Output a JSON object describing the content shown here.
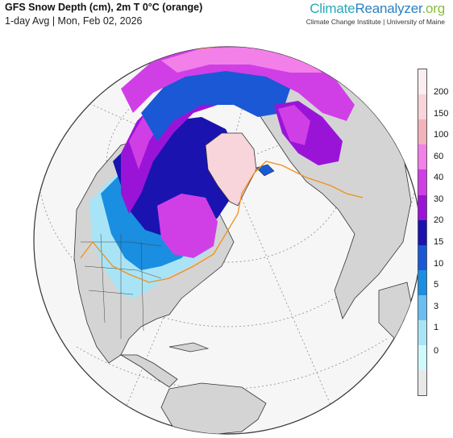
{
  "header": {
    "title": "GFS Snow Depth (cm), 2m T 0°C (orange)",
    "subtitle": "1-day Avg | Mon, Feb 02, 2026"
  },
  "brand": {
    "logo_part1": "Climate",
    "logo_part2": "Reanalyzer",
    "logo_part3": ".org",
    "tagline": "Climate Change Institute | University of Maine"
  },
  "legend": {
    "ticks": [
      {
        "label": "200",
        "color": "#fbeef0"
      },
      {
        "label": "150",
        "color": "#f7d5da"
      },
      {
        "label": "100",
        "color": "#f3b3ba"
      },
      {
        "label": "60",
        "color": "#f37fe9"
      },
      {
        "label": "40",
        "color": "#d03fe6"
      },
      {
        "label": "30",
        "color": "#9a14d8"
      },
      {
        "label": "20",
        "color": "#1a13b0"
      },
      {
        "label": "15",
        "color": "#1a58d6"
      },
      {
        "label": "10",
        "color": "#1a8ee0"
      },
      {
        "label": "5",
        "color": "#6abff0"
      },
      {
        "label": "3",
        "color": "#a9e4f6"
      },
      {
        "label": "1",
        "color": "#cffafd"
      },
      {
        "label": "0",
        "color": "#e8e8e8"
      }
    ]
  },
  "colors": {
    "land": "#d4d4d4",
    "ocean": "#f6f6f6",
    "freezing_line": "#f0901a"
  }
}
